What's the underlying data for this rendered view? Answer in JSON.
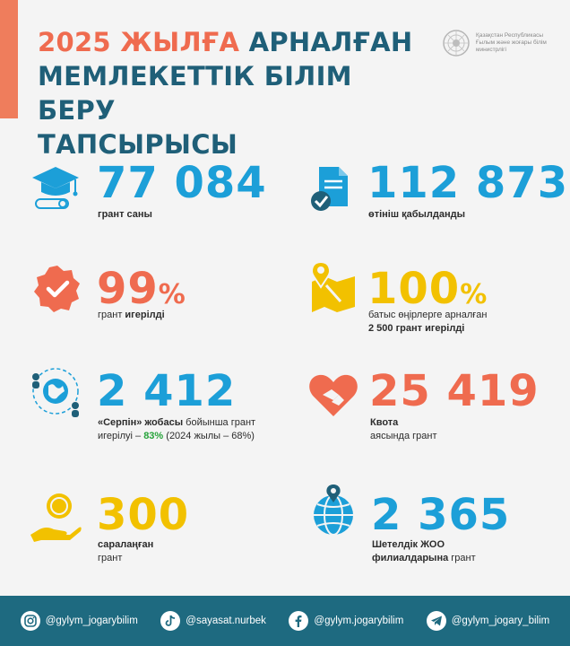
{
  "header": {
    "title_highlight": "2025 ЖЫЛҒА",
    "title_line1_rest": " АРНАЛҒАН",
    "title_line2": "МЕМЛЕКЕТТІК БІЛІМ БЕРУ",
    "title_line3": "ТАПСЫРЫСЫ",
    "ministry_lines": [
      "Қазақстан Республикасы",
      "Ғылым және жоғары білім",
      "министрлігі"
    ]
  },
  "stats": {
    "grants": {
      "value": "77 084",
      "caption": "грант саны"
    },
    "applications": {
      "value": "112 873",
      "caption": "өтініш қабылданды"
    },
    "execution": {
      "value": "99",
      "unit": "%",
      "caption_plain": "грант ",
      "caption_bold": "игерілді"
    },
    "western": {
      "value": "100",
      "unit": "%",
      "caption_line1": "батыс өңірлерге арналған",
      "caption_line2": "2 500 грант игерілді"
    },
    "serpin": {
      "value": "2 412",
      "caption_bold": "«Серпін» жобасы",
      "caption_rest": " бойынша грант",
      "caption_line2_pre": "игерілуі – ",
      "caption_line2_pct": "83%",
      "caption_line2_post": " (2024 жылы – 68%)"
    },
    "quota": {
      "value": "25 419",
      "caption_line1": "Квота",
      "caption_line2": "аясында грант"
    },
    "differentiated": {
      "value": "300",
      "caption_line1": "саралаңған",
      "caption_line2": "грант"
    },
    "foreign": {
      "value": "2 365",
      "caption_line1": "Шетелдік ЖОО",
      "caption_line2_bold": "филиалдарына",
      "caption_line2_rest": " грант"
    }
  },
  "footer": {
    "socials": [
      {
        "icon": "instagram-icon",
        "handle": "@gylym_jogarybilim"
      },
      {
        "icon": "tiktok-icon",
        "handle": "@sayasat.nurbek"
      },
      {
        "icon": "facebook-icon",
        "handle": "@gylym.jogarybilim"
      },
      {
        "icon": "telegram-icon",
        "handle": "@gylym_jogary_bilim"
      }
    ]
  },
  "colors": {
    "navy": "#1f5f78",
    "coral": "#ef6b4f",
    "blue": "#1c9fd8",
    "yellow": "#f2c100",
    "footer": "#1e6a80",
    "background": "#f4f4f4"
  }
}
